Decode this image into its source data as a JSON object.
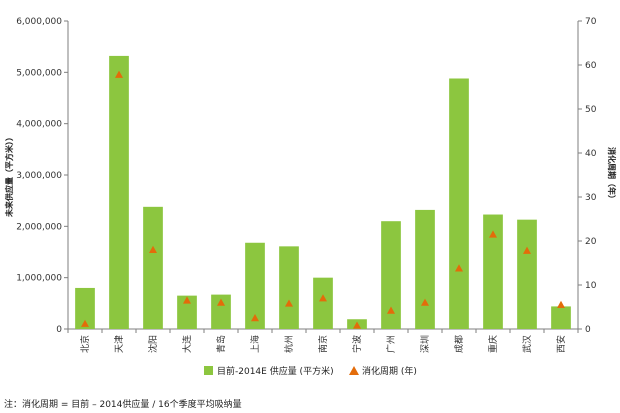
{
  "chart_data": {
    "type": "bar",
    "categories": [
      "北京",
      "天津",
      "沈阳",
      "大连",
      "青岛",
      "上海",
      "杭州",
      "南京",
      "宁波",
      "广州",
      "深圳",
      "成都",
      "重庆",
      "武汉",
      "西安"
    ],
    "series": [
      {
        "name": "目前-2014E 供应量 (平方米)",
        "type": "bar",
        "axis": "left",
        "color": "#8CC63F",
        "values": [
          800000,
          5320000,
          2380000,
          650000,
          670000,
          1680000,
          1610000,
          1000000,
          190000,
          2100000,
          2320000,
          4880000,
          2230000,
          2130000,
          440000
        ]
      },
      {
        "name": "消化周期 (年)",
        "type": "scatter",
        "marker": "triangle",
        "axis": "right",
        "color": "#E36C0A",
        "values": [
          1.2,
          57.8,
          18,
          6.5,
          6,
          2.5,
          5.8,
          7,
          0.8,
          4.2,
          6,
          13.8,
          21.5,
          17.8,
          5.5
        ]
      }
    ],
    "ylabel_left": "未来供应量（平方米））",
    "ylabel_right": "消化周期（年）",
    "yticks_left": [
      "0",
      "1,000,000",
      "2,000,000",
      "3,000,000",
      "4,000,000",
      "5,000,000",
      "6,000,000"
    ],
    "yticks_right": [
      "0",
      "10",
      "20",
      "30",
      "40",
      "50",
      "60",
      "70"
    ],
    "ylim_left": [
      0,
      6000000
    ],
    "ylim_right": [
      0,
      70
    ],
    "legend_position": "bottom",
    "grid": false
  },
  "footnote": "注：消化周期 = 目前 – 2014供应量 / 16个季度平均吸纳量"
}
